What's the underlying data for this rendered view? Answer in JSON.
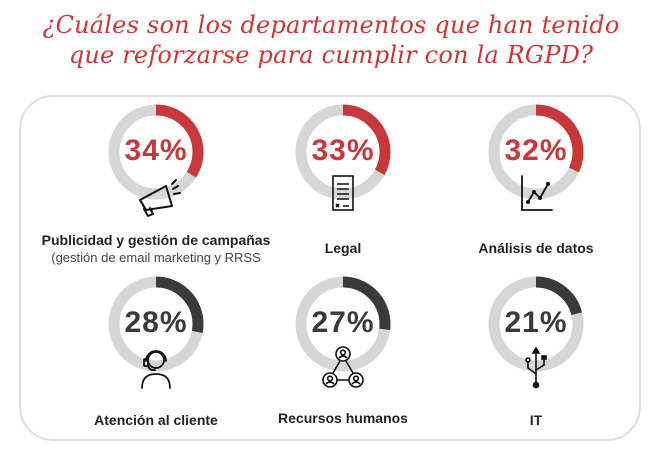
{
  "title": "¿Cuáles son los departamentos que han tenido que reforzarse para cumplir con la RGPD?",
  "colors": {
    "accent": "#c8383a",
    "dark": "#3a3a3a",
    "track": "#d6d6d6",
    "title": "#c8383a"
  },
  "chart_data": {
    "type": "pie",
    "title": "¿Cuáles son los departamentos que han tenido que reforzarse para cumplir con la RGPD?",
    "items": [
      {
        "label": "Publicidad y gestión de campañas",
        "sublabel": "(gestión de email marketing y RRSS",
        "value": 34,
        "value_label": "34%",
        "icon": "megaphone-icon"
      },
      {
        "label": "Legal",
        "value": 33,
        "value_label": "33%",
        "icon": "document-icon"
      },
      {
        "label": "Análisis de datos",
        "value": 32,
        "value_label": "32%",
        "icon": "line-chart-icon"
      },
      {
        "label": "Atención al cliente",
        "value": 28,
        "value_label": "28%",
        "icon": "headset-icon"
      },
      {
        "label": "Recursos humanos",
        "value": 27,
        "value_label": "27%",
        "icon": "people-network-icon"
      },
      {
        "label": "IT",
        "value": 21,
        "value_label": "21%",
        "icon": "usb-icon"
      }
    ]
  }
}
